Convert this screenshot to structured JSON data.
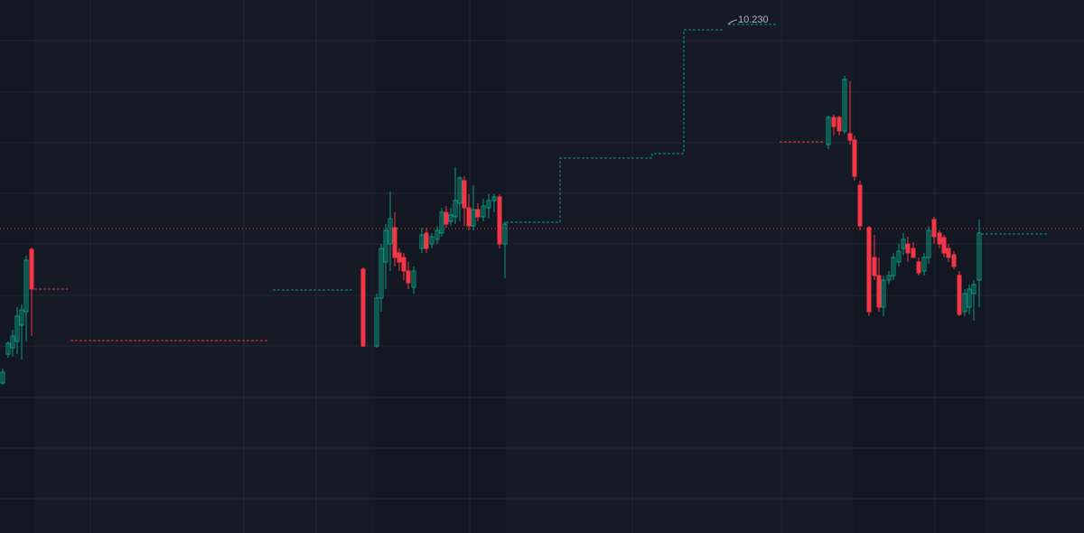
{
  "chart_data": {
    "type": "candlestick",
    "xlim": [
      0,
      1200
    ],
    "ylim": [
      9.104,
      10.284
    ],
    "up_color": "#089981",
    "down_color": "#f23645",
    "x": [
      3,
      9,
      14,
      19,
      24,
      29,
      35,
      402,
      417,
      422,
      427,
      432,
      437,
      442,
      447,
      452,
      458,
      467,
      472,
      478,
      484,
      489,
      494,
      499,
      504,
      509,
      514,
      519,
      524,
      529,
      535,
      541,
      547,
      553,
      559,
      917,
      923,
      929,
      935,
      941,
      946,
      952,
      962,
      968,
      973,
      978,
      984,
      989,
      995,
      1000,
      1005,
      1011,
      1017,
      1023,
      1028,
      1034,
      1040,
      1045,
      1050,
      1056,
      1062,
      1068,
      1073,
      1078,
      1084
    ],
    "open": [
      9.436,
      9.5,
      9.514,
      9.528,
      9.564,
      9.594,
      9.732,
      9.688,
      9.518,
      9.624,
      9.704,
      9.744,
      9.78,
      9.724,
      9.714,
      9.684,
      9.648,
      9.734,
      9.768,
      9.744,
      9.754,
      9.768,
      9.814,
      9.794,
      9.804,
      9.834,
      9.884,
      9.824,
      9.784,
      9.82,
      9.804,
      9.824,
      9.84,
      9.848,
      9.744,
      9.964,
      10.024,
      10.024,
      9.994,
      9.988,
      9.974,
      9.874,
      9.78,
      9.714,
      9.674,
      9.604,
      9.664,
      9.674,
      9.704,
      9.734,
      9.744,
      9.734,
      9.704,
      9.684,
      9.714,
      9.798,
      9.768,
      9.758,
      9.734,
      9.72,
      9.674,
      9.594,
      9.604,
      9.634,
      9.664
    ],
    "high": [
      9.468,
      9.528,
      9.554,
      9.604,
      9.61,
      9.718,
      9.736,
      9.692,
      9.634,
      9.744,
      9.788,
      9.86,
      9.814,
      9.734,
      9.724,
      9.704,
      9.694,
      9.78,
      9.78,
      9.768,
      9.784,
      9.824,
      9.828,
      9.824,
      9.914,
      9.894,
      9.894,
      9.854,
      9.874,
      9.834,
      9.844,
      9.854,
      9.854,
      9.854,
      9.794,
      10.028,
      10.03,
      10.028,
      10.116,
      10.104,
      9.984,
      9.884,
      9.784,
      9.764,
      9.714,
      9.674,
      9.684,
      9.724,
      9.744,
      9.768,
      9.76,
      9.748,
      9.714,
      9.724,
      9.784,
      9.804,
      9.774,
      9.764,
      9.744,
      9.728,
      9.684,
      9.644,
      9.654,
      9.664,
      9.798
    ],
    "low": [
      9.432,
      9.492,
      9.494,
      9.5,
      9.488,
      9.528,
      9.54,
      9.516,
      9.514,
      9.594,
      9.644,
      9.684,
      9.694,
      9.684,
      9.664,
      9.644,
      9.634,
      9.724,
      9.724,
      9.734,
      9.744,
      9.76,
      9.78,
      9.784,
      9.788,
      9.794,
      9.784,
      9.774,
      9.774,
      9.794,
      9.794,
      9.8,
      9.814,
      9.734,
      9.668,
      9.954,
      9.984,
      9.984,
      9.988,
      9.964,
      9.884,
      9.774,
      9.584,
      9.664,
      9.594,
      9.584,
      9.654,
      9.664,
      9.694,
      9.72,
      9.704,
      9.714,
      9.674,
      9.674,
      9.7,
      9.744,
      9.734,
      9.714,
      9.704,
      9.688,
      9.584,
      9.584,
      9.588,
      9.574,
      9.604
    ],
    "close": [
      9.46,
      9.524,
      9.54,
      9.584,
      9.598,
      9.708,
      9.644,
      9.518,
      9.624,
      9.734,
      9.774,
      9.8,
      9.714,
      9.704,
      9.684,
      9.658,
      9.684,
      9.764,
      9.734,
      9.76,
      9.774,
      9.814,
      9.788,
      9.808,
      9.84,
      9.89,
      9.824,
      9.784,
      9.82,
      9.804,
      9.828,
      9.84,
      9.848,
      9.744,
      9.788,
      10.024,
      10.004,
      9.994,
      10.108,
      9.974,
      9.894,
      9.784,
      9.594,
      9.674,
      9.604,
      9.664,
      9.674,
      9.714,
      9.728,
      9.754,
      9.724,
      9.714,
      9.68,
      9.714,
      9.774,
      9.76,
      9.744,
      9.724,
      9.714,
      9.694,
      9.588,
      9.634,
      9.644,
      9.654,
      9.768
    ],
    "levels": [
      {
        "x": [
          38,
          75
        ],
        "value": 9.644,
        "color": "#f23645"
      },
      {
        "x": [
          78,
          298
        ],
        "value": 9.53,
        "color": "#f23645"
      },
      {
        "x": [
          302,
          392
        ],
        "value": 9.642,
        "color": "#089981"
      },
      {
        "x": [
          806,
          860
        ],
        "value": 10.23,
        "color": "#089981"
      },
      {
        "x": [
          863,
          912
        ],
        "value": 9.97,
        "color": "#f23645"
      },
      {
        "x": [
          1086,
          1160
        ],
        "value": 9.766,
        "color": "#089981"
      }
    ],
    "step": {
      "x": [
        560,
        620,
        722,
        757,
        800
      ],
      "values": [
        9.792,
        9.934,
        9.944,
        10.218,
        10.218
      ],
      "color": "#089981"
    },
    "last_price": 9.778,
    "annotation": "10.230"
  }
}
